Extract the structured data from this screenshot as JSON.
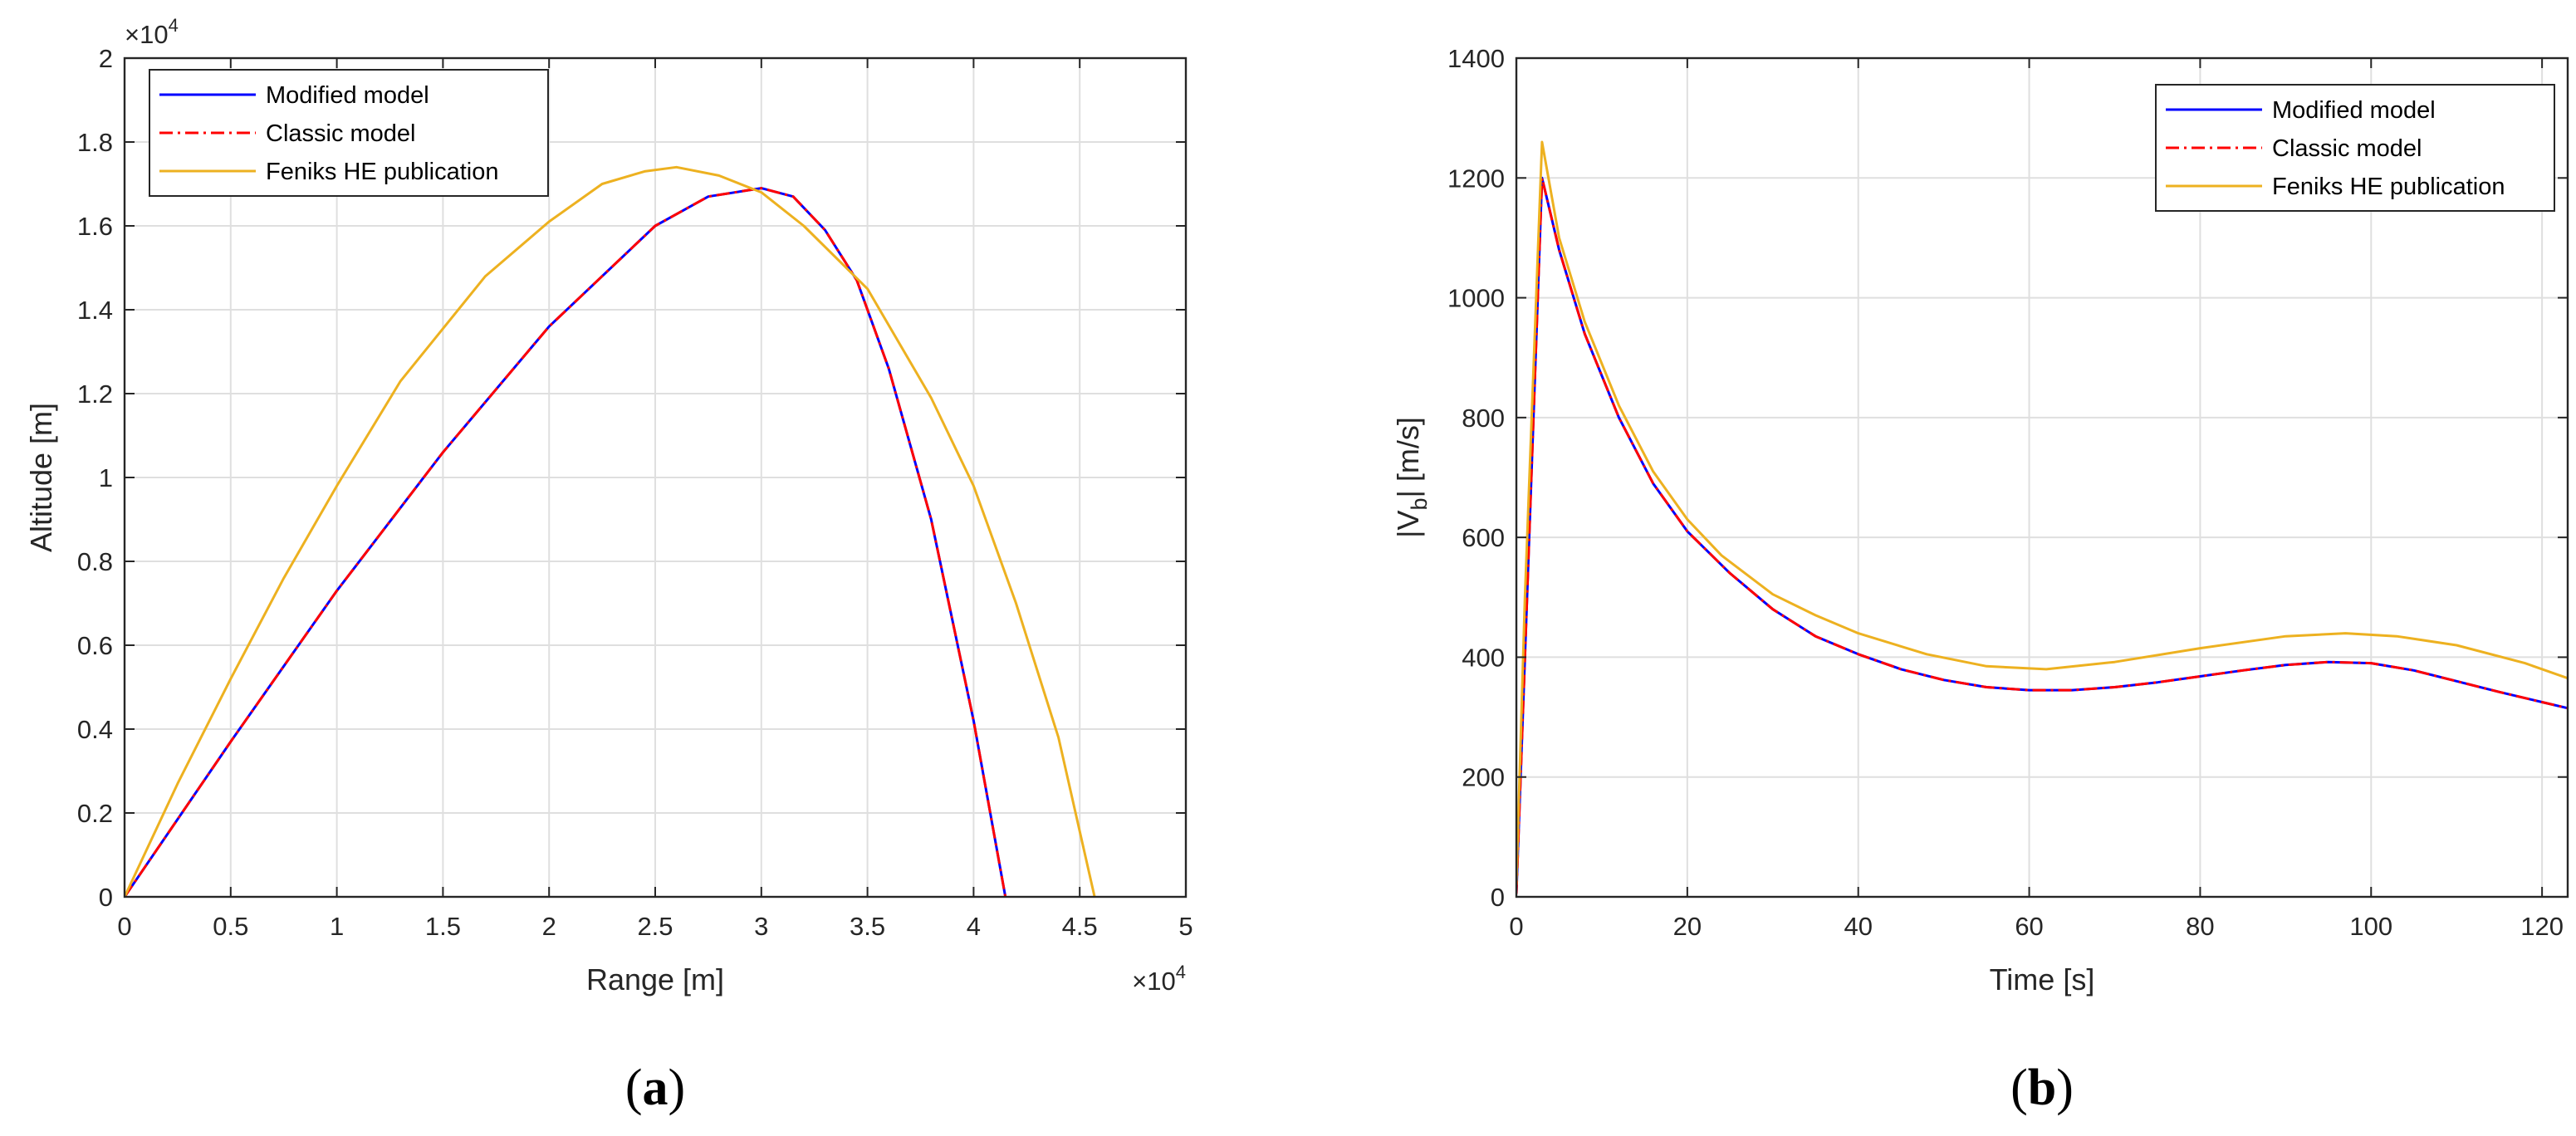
{
  "colors": {
    "modified": "#0000ff",
    "classic": "#ff0000",
    "feniks": "#edb120",
    "grid": "#dfdfdf",
    "axis": "#262626"
  },
  "chart_data": [
    {
      "type": "line",
      "caption_open": "(",
      "caption_letter": "a",
      "caption_close": ")",
      "title": "",
      "xlabel": "Range [m]",
      "ylabel": "Altitude [m]",
      "x_multiplier_base": "×10",
      "x_multiplier_exp": "4",
      "y_multiplier_base": "×10",
      "y_multiplier_exp": "4",
      "xlim": [
        0,
        50000
      ],
      "ylim": [
        0,
        20000
      ],
      "xticks": [
        0,
        5000,
        10000,
        15000,
        20000,
        25000,
        30000,
        35000,
        40000,
        45000,
        50000
      ],
      "xtick_labels": [
        "0",
        "0.5",
        "1",
        "1.5",
        "2",
        "2.5",
        "3",
        "3.5",
        "4",
        "4.5",
        "5"
      ],
      "yticks": [
        0,
        2000,
        4000,
        6000,
        8000,
        10000,
        12000,
        14000,
        16000,
        18000,
        20000
      ],
      "ytick_labels": [
        "0",
        "0.2",
        "0.4",
        "0.6",
        "0.8",
        "1",
        "1.2",
        "1.4",
        "1.6",
        "1.8",
        "2"
      ],
      "grid": true,
      "legend_position": "top-left",
      "series": [
        {
          "name": "Modified model",
          "color": "#0000ff",
          "dash": "solid",
          "x": [
            0,
            5000,
            10000,
            15000,
            20000,
            25000,
            27500,
            30000,
            31500,
            33000,
            34500,
            36000,
            38000,
            40000,
            41500
          ],
          "y": [
            0,
            3700,
            7300,
            10600,
            13600,
            16000,
            16700,
            16900,
            16700,
            15900,
            14700,
            12600,
            9000,
            4200,
            0
          ]
        },
        {
          "name": "Classic model",
          "color": "#ff0000",
          "dash": "dashdot",
          "x": [
            0,
            5000,
            10000,
            15000,
            20000,
            25000,
            27500,
            30000,
            31500,
            33000,
            34500,
            36000,
            38000,
            40000,
            41500
          ],
          "y": [
            0,
            3700,
            7300,
            10600,
            13600,
            16000,
            16700,
            16900,
            16700,
            15900,
            14700,
            12600,
            9000,
            4200,
            0
          ]
        },
        {
          "name": "Feniks HE publication",
          "color": "#edb120",
          "dash": "solid",
          "x": [
            0,
            2500,
            5000,
            7500,
            10000,
            13000,
            17000,
            20000,
            22500,
            24500,
            26000,
            28000,
            30000,
            32000,
            35000,
            38000,
            40000,
            42000,
            44000,
            45700
          ],
          "y": [
            0,
            2700,
            5200,
            7600,
            9800,
            12300,
            14800,
            16100,
            17000,
            17300,
            17400,
            17200,
            16800,
            16000,
            14500,
            11900,
            9800,
            7000,
            3800,
            0
          ]
        }
      ]
    },
    {
      "type": "line",
      "caption_open": "(",
      "caption_letter": "b",
      "caption_close": ")",
      "title": "",
      "xlabel": "Time [s]",
      "ylabel_pre": "|V",
      "ylabel_sub": "b",
      "ylabel_post": "| [m/s]",
      "xlim": [
        0,
        123
      ],
      "ylim": [
        0,
        1400
      ],
      "xticks": [
        0,
        20,
        40,
        60,
        80,
        100,
        120
      ],
      "xtick_labels": [
        "0",
        "20",
        "40",
        "60",
        "80",
        "100",
        "120"
      ],
      "yticks": [
        0,
        200,
        400,
        600,
        800,
        1000,
        1200,
        1400
      ],
      "ytick_labels": [
        "0",
        "200",
        "400",
        "600",
        "800",
        "1000",
        "1200",
        "1400"
      ],
      "grid": true,
      "legend_position": "top-right",
      "series": [
        {
          "name": "Modified model",
          "color": "#0000ff",
          "dash": "solid",
          "x": [
            0,
            1,
            3,
            5,
            8,
            12,
            16,
            20,
            25,
            30,
            35,
            40,
            45,
            50,
            55,
            60,
            65,
            70,
            75,
            80,
            85,
            90,
            95,
            100,
            105,
            110,
            115,
            120,
            123
          ],
          "y": [
            5,
            400,
            1200,
            1080,
            940,
            800,
            690,
            610,
            540,
            480,
            435,
            405,
            380,
            362,
            350,
            345,
            345,
            350,
            358,
            368,
            378,
            387,
            392,
            390,
            378,
            360,
            342,
            325,
            315
          ]
        },
        {
          "name": "Classic model",
          "color": "#ff0000",
          "dash": "dashdot",
          "x": [
            0,
            1,
            3,
            5,
            8,
            12,
            16,
            20,
            25,
            30,
            35,
            40,
            45,
            50,
            55,
            60,
            65,
            70,
            75,
            80,
            85,
            90,
            95,
            100,
            105,
            110,
            115,
            120,
            123
          ],
          "y": [
            5,
            400,
            1200,
            1080,
            940,
            800,
            690,
            610,
            540,
            480,
            435,
            405,
            380,
            362,
            350,
            345,
            345,
            350,
            358,
            368,
            378,
            387,
            392,
            390,
            378,
            360,
            342,
            325,
            315
          ]
        },
        {
          "name": "Feniks HE publication",
          "color": "#edb120",
          "dash": "solid",
          "x": [
            0,
            1,
            3,
            5,
            8,
            12,
            16,
            20,
            24,
            30,
            35,
            40,
            48,
            55,
            62,
            70,
            80,
            90,
            97,
            103,
            110,
            118,
            123
          ],
          "y": [
            20,
            500,
            1260,
            1100,
            960,
            820,
            710,
            630,
            570,
            505,
            470,
            440,
            405,
            385,
            380,
            392,
            415,
            435,
            440,
            435,
            420,
            390,
            365
          ]
        }
      ]
    }
  ]
}
